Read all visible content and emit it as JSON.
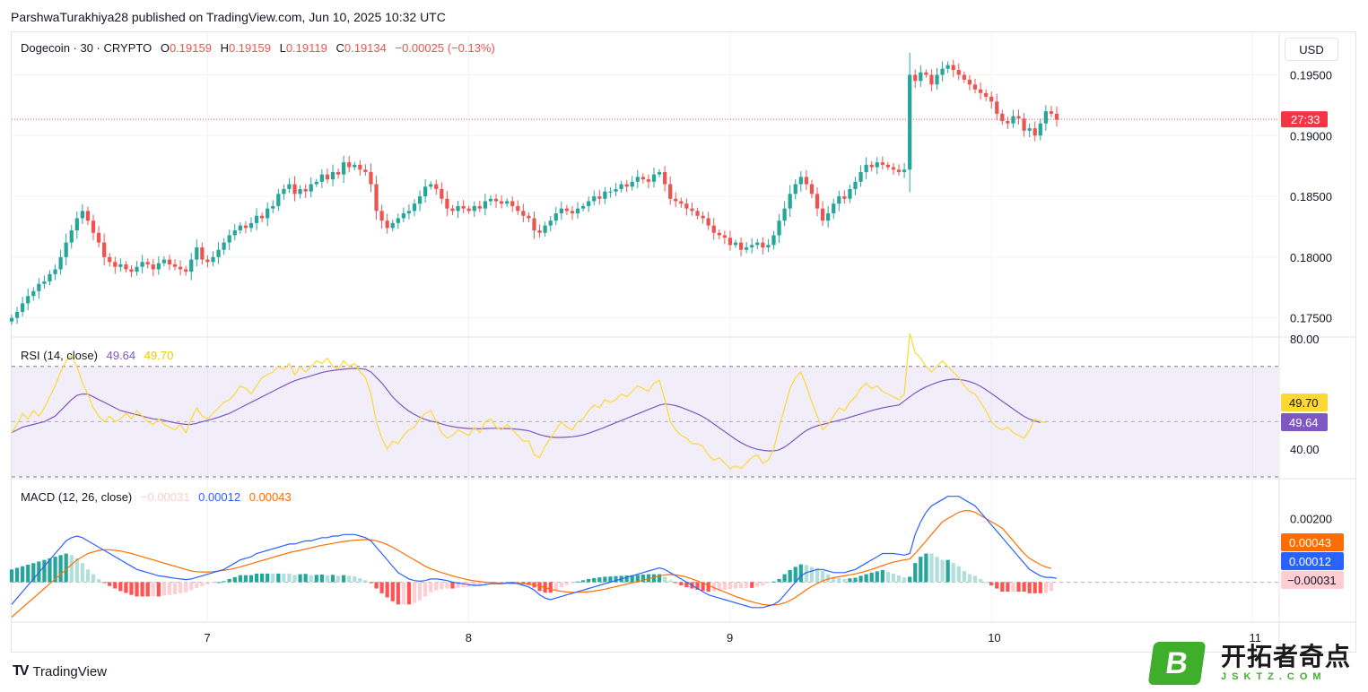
{
  "header": {
    "publisher_line": "ParshwaTurakhiya28 published on TradingView.com, Jun 10, 2025 10:32 UTC"
  },
  "main_legend": {
    "symbol": "Dogecoin · 30 · CRYPTO",
    "o_label": "O",
    "o_value": "0.19159",
    "h_label": "H",
    "h_value": "0.19159",
    "l_label": "L",
    "l_value": "0.19119",
    "c_label": "C",
    "c_value": "0.19134",
    "change": "−0.00025 (−0.13%)"
  },
  "currency": "USD",
  "rsi_legend": {
    "title": "RSI (14, close)",
    "rsi_value": "49.64",
    "ma_value": "49.70"
  },
  "macd_legend": {
    "title": "MACD (12, 26, close)",
    "hist_value": "−0.00031",
    "macd_value": "0.00012",
    "signal_value": "0.00043"
  },
  "footer": {
    "brand": "TradingView"
  },
  "watermark": {
    "letter": "B",
    "cn_text": "开拓者奇点",
    "url_text": "JSKTZ.COM"
  },
  "colors": {
    "up": "#26a69a",
    "down": "#ef5350",
    "rsi_line": "#7e57c2",
    "rsi_ma": "#fdd835",
    "macd_line": "#2962ff",
    "signal_line": "#ff6d00",
    "hist_up_strong": "#26a69a",
    "hist_up_weak": "#b2dfdb",
    "hist_down_strong": "#ff5252",
    "hist_down_weak": "#ffcdd2"
  },
  "chart_data": [
    {
      "type": "candlestick",
      "title": "Dogecoin · 30 · CRYPTO",
      "ylim": [
        0.1735,
        0.1985
      ],
      "y_ticks": [
        "0.19500",
        "0.19000",
        "0.18500",
        "0.18000",
        "0.17500"
      ],
      "x_ticks": [
        "7",
        "8",
        "9",
        "10",
        "11"
      ],
      "last_price": 0.19134,
      "countdown_label": "27:33",
      "closes": [
        0.175,
        0.1755,
        0.1762,
        0.1768,
        0.1772,
        0.1778,
        0.178,
        0.1786,
        0.179,
        0.18,
        0.1812,
        0.1822,
        0.1832,
        0.1838,
        0.183,
        0.182,
        0.1812,
        0.18,
        0.1796,
        0.1792,
        0.1794,
        0.179,
        0.1788,
        0.1792,
        0.1796,
        0.1794,
        0.179,
        0.1795,
        0.1798,
        0.1794,
        0.1792,
        0.179,
        0.1788,
        0.1798,
        0.1808,
        0.1798,
        0.1796,
        0.18,
        0.1806,
        0.1812,
        0.1818,
        0.1822,
        0.1826,
        0.1824,
        0.1828,
        0.1834,
        0.1832,
        0.184,
        0.1842,
        0.1852,
        0.1856,
        0.186,
        0.1852,
        0.1856,
        0.1854,
        0.186,
        0.1862,
        0.1868,
        0.1864,
        0.187,
        0.1868,
        0.1878,
        0.1874,
        0.1876,
        0.1872,
        0.187,
        0.186,
        0.1838,
        0.183,
        0.1824,
        0.1828,
        0.1832,
        0.1836,
        0.1838,
        0.1844,
        0.185,
        0.1858,
        0.186,
        0.1856,
        0.1848,
        0.184,
        0.1838,
        0.1842,
        0.184,
        0.1838,
        0.1842,
        0.184,
        0.1846,
        0.1848,
        0.1846,
        0.1844,
        0.1846,
        0.1842,
        0.1838,
        0.1834,
        0.1832,
        0.1822,
        0.182,
        0.1826,
        0.183,
        0.1836,
        0.184,
        0.1838,
        0.1836,
        0.184,
        0.1842,
        0.1846,
        0.185,
        0.1848,
        0.1854,
        0.1854,
        0.1856,
        0.186,
        0.1858,
        0.1862,
        0.1866,
        0.1864,
        0.1862,
        0.1868,
        0.187,
        0.186,
        0.1848,
        0.1846,
        0.1844,
        0.184,
        0.1838,
        0.1834,
        0.1832,
        0.1826,
        0.182,
        0.1818,
        0.1816,
        0.181,
        0.1812,
        0.1806,
        0.1808,
        0.181,
        0.1812,
        0.1808,
        0.181,
        0.1818,
        0.183,
        0.184,
        0.1852,
        0.186,
        0.1866,
        0.186,
        0.1852,
        0.184,
        0.183,
        0.1836,
        0.1844,
        0.185,
        0.1848,
        0.1856,
        0.1862,
        0.187,
        0.1876,
        0.1874,
        0.1878,
        0.1876,
        0.1874,
        0.1872,
        0.187,
        0.1872,
        0.195,
        0.1945,
        0.1952,
        0.195,
        0.1942,
        0.195,
        0.1955,
        0.1958,
        0.1954,
        0.195,
        0.1946,
        0.1942,
        0.1938,
        0.1935,
        0.1932,
        0.1928,
        0.1918,
        0.1912,
        0.191,
        0.1916,
        0.1914,
        0.1904,
        0.1906,
        0.19,
        0.191,
        0.192,
        0.1918,
        0.1913
      ]
    },
    {
      "type": "line",
      "title": "RSI (14, close)",
      "ylim": [
        30,
        80
      ],
      "y_ticks": [
        "80.00",
        "40.00"
      ],
      "series": [
        {
          "name": "RSI",
          "values": [
            46,
            49,
            53,
            51,
            54,
            52,
            55,
            59,
            63,
            68,
            72,
            74,
            70,
            64,
            60,
            55,
            52,
            50,
            52,
            50,
            51,
            53,
            51,
            54,
            52,
            50,
            49,
            51,
            49,
            48,
            47,
            49,
            46,
            51,
            55,
            52,
            51,
            53,
            55,
            57,
            58,
            60,
            63,
            62,
            60,
            63,
            66,
            67,
            68,
            70,
            69,
            71,
            67,
            70,
            68,
            70,
            72,
            71,
            73,
            70,
            69,
            72,
            70,
            71,
            68,
            66,
            60,
            50,
            44,
            40,
            43,
            42,
            45,
            47,
            48,
            51,
            53,
            54,
            50,
            46,
            44,
            45,
            47,
            46,
            45,
            48,
            46,
            50,
            51,
            48,
            47,
            49,
            47,
            45,
            43,
            43,
            38,
            37,
            41,
            44,
            47,
            50,
            48,
            47,
            50,
            51,
            54,
            56,
            55,
            58,
            57,
            58,
            60,
            59,
            61,
            63,
            62,
            61,
            64,
            65,
            58,
            50,
            47,
            45,
            44,
            42,
            42,
            41,
            38,
            36,
            37,
            35,
            33,
            34,
            33,
            35,
            37,
            38,
            35,
            36,
            40,
            48,
            55,
            62,
            66,
            68,
            63,
            57,
            52,
            47,
            49,
            52,
            55,
            54,
            57,
            59,
            62,
            64,
            62,
            63,
            61,
            60,
            59,
            58,
            60,
            82,
            75,
            73,
            70,
            68,
            70,
            72,
            70,
            68,
            66,
            63,
            61,
            60,
            57,
            54,
            50,
            48,
            47,
            48,
            46,
            45,
            44,
            47,
            51,
            50,
            49.64
          ]
        },
        {
          "name": "MA",
          "values": [
            46,
            47,
            48,
            48.5,
            49,
            49.5,
            50,
            51,
            52,
            54,
            56,
            58,
            59.5,
            60,
            60,
            59,
            58,
            57,
            56,
            55,
            54,
            53.5,
            53,
            52.5,
            52,
            51.5,
            51,
            50.8,
            50.5,
            50,
            49.6,
            49.3,
            49,
            49,
            49.4,
            50,
            50.5,
            51,
            51.6,
            52.3,
            53,
            54,
            55,
            56,
            57,
            58,
            59,
            60,
            61,
            62,
            63,
            64,
            64.8,
            65.5,
            66,
            66.6,
            67.2,
            67.8,
            68.2,
            68.5,
            68.8,
            69,
            69.2,
            69.3,
            69.2,
            69,
            68,
            66,
            64,
            61.5,
            59,
            57,
            55.3,
            53.8,
            52.6,
            51.6,
            50.8,
            50.2,
            49.8,
            49.2,
            48.6,
            48.2,
            47.9,
            47.7,
            47.5,
            47.5,
            47.4,
            47.5,
            47.6,
            47.6,
            47.5,
            47.5,
            47.4,
            47.2,
            47,
            46.7,
            46,
            45.3,
            44.8,
            44.4,
            44.3,
            44.3,
            44.4,
            44.5,
            44.8,
            45.2,
            45.8,
            46.5,
            47.2,
            48,
            48.8,
            49.6,
            50.4,
            51.2,
            52,
            52.8,
            53.6,
            54.4,
            55.2,
            56,
            56.4,
            56.2,
            55.8,
            55.2,
            54.4,
            53.6,
            52.8,
            51.8,
            50.6,
            49.2,
            47.8,
            46.4,
            45,
            43.6,
            42.4,
            41.4,
            40.6,
            40,
            39.6,
            39.4,
            39.4,
            39.8,
            40.8,
            42.2,
            43.8,
            45.4,
            46.8,
            47.8,
            48.5,
            49,
            49.5,
            50,
            50.5,
            51,
            51.6,
            52.2,
            52.8,
            53.4,
            54,
            54.5,
            55,
            55.4,
            55.7,
            56,
            57.5,
            59,
            60.4,
            61.6,
            62.6,
            63.4,
            64.2,
            64.8,
            65.2,
            65.4,
            65.3,
            65,
            64.5,
            63.8,
            62.8,
            61.6,
            60.2,
            58.8,
            57.4,
            56,
            54.6,
            53.2,
            51.9,
            50.9,
            50.2,
            49.7
          ]
        }
      ]
    },
    {
      "type": "line",
      "title": "MACD (12, 26, close)",
      "ylim": [
        -0.0012,
        0.0032
      ],
      "y_ticks": [
        "0.00200"
      ],
      "series": [
        {
          "name": "MACD",
          "values": [
            -0.0007,
            -0.0005,
            -0.0003,
            -0.0001,
            0.0001,
            0.0003,
            0.0005,
            0.0007,
            0.0009,
            0.0011,
            0.0013,
            0.0014,
            0.00145,
            0.0014,
            0.0013,
            0.0012,
            0.0011,
            0.001,
            0.0009,
            0.0008,
            0.0007,
            0.0006,
            0.0005,
            0.0004,
            0.00035,
            0.0003,
            0.00025,
            0.0002,
            0.00018,
            0.00015,
            0.00012,
            0.0001,
            8e-05,
            0.0001,
            0.00015,
            0.0002,
            0.00025,
            0.0003,
            0.00035,
            0.0004,
            0.0005,
            0.0006,
            0.0007,
            0.00075,
            0.0008,
            0.0009,
            0.00095,
            0.001,
            0.00105,
            0.0011,
            0.00115,
            0.0012,
            0.0012,
            0.00125,
            0.0013,
            0.0013,
            0.00135,
            0.0014,
            0.0014,
            0.00145,
            0.00145,
            0.0015,
            0.0015,
            0.0015,
            0.00145,
            0.0014,
            0.0013,
            0.0011,
            0.0009,
            0.0007,
            0.0005,
            0.0003,
            0.0002,
            0.0001,
            5e-05,
            3e-05,
            5e-05,
            0.0001,
            0.0001,
            8e-05,
            5e-05,
            0,
            -3e-05,
            -5e-05,
            -8e-05,
            -0.0001,
            -0.0001,
            -8e-05,
            -5e-05,
            -5e-05,
            -5e-05,
            -3e-05,
            -3e-05,
            -5e-05,
            -0.0001,
            -0.00015,
            -0.00025,
            -0.0004,
            -0.0005,
            -0.00055,
            -0.0005,
            -0.00045,
            -0.0004,
            -0.00035,
            -0.0003,
            -0.00025,
            -0.0002,
            -0.00015,
            -0.0001,
            -5e-05,
            0,
            5e-05,
            0.0001,
            0.00015,
            0.0002,
            0.00025,
            0.0003,
            0.00035,
            0.0004,
            0.00045,
            0.0004,
            0.0003,
            0.0002,
            0.0001,
            0,
            -0.0001,
            -0.0002,
            -0.0003,
            -0.0004,
            -0.00045,
            -0.0005,
            -0.00055,
            -0.0006,
            -0.00065,
            -0.0007,
            -0.00075,
            -0.0008,
            -0.0008,
            -0.0008,
            -0.00075,
            -0.0007,
            -0.0006,
            -0.0004,
            -0.0002,
            0,
            0.0002,
            0.0003,
            0.00035,
            0.0004,
            0.0004,
            0.00035,
            0.0003,
            0.0003,
            0.0003,
            0.00035,
            0.0004,
            0.0005,
            0.0006,
            0.0007,
            0.0008,
            0.0009,
            0.0009,
            0.0009,
            0.00088,
            0.00085,
            0.0009,
            0.0015,
            0.0019,
            0.0022,
            0.0024,
            0.0025,
            0.0026,
            0.0027,
            0.0027,
            0.0027,
            0.0026,
            0.0025,
            0.0024,
            0.0022,
            0.002,
            0.0018,
            0.0016,
            0.0014,
            0.0012,
            0.001,
            0.0008,
            0.0006,
            0.0004,
            0.0003,
            0.0002,
            0.00015,
            0.00015,
            0.00012
          ]
        },
        {
          "name": "Signal",
          "values": [
            -0.0011,
            -0.00095,
            -0.0008,
            -0.00065,
            -0.0005,
            -0.00035,
            -0.0002,
            -5e-05,
            0.0001,
            0.00025,
            0.0004,
            0.00055,
            0.0007,
            0.0008,
            0.0009,
            0.00095,
            0.001,
            0.00102,
            0.00102,
            0.001,
            0.00098,
            0.00094,
            0.0009,
            0.00085,
            0.0008,
            0.00075,
            0.0007,
            0.00065,
            0.0006,
            0.00055,
            0.0005,
            0.00045,
            0.0004,
            0.00035,
            0.00033,
            0.00032,
            0.00032,
            0.00033,
            0.00035,
            0.00037,
            0.0004,
            0.00044,
            0.00048,
            0.00053,
            0.00058,
            0.00063,
            0.00068,
            0.00073,
            0.00078,
            0.00083,
            0.00088,
            0.00093,
            0.00097,
            0.001,
            0.00104,
            0.00108,
            0.00112,
            0.00116,
            0.00119,
            0.00122,
            0.00125,
            0.00128,
            0.0013,
            0.00132,
            0.00133,
            0.00134,
            0.00133,
            0.0013,
            0.00125,
            0.00118,
            0.0011,
            0.001,
            0.0009,
            0.0008,
            0.0007,
            0.0006,
            0.0005,
            0.00042,
            0.00036,
            0.0003,
            0.00025,
            0.0002,
            0.00015,
            0.00011,
            7e-05,
            4e-05,
            2e-05,
            0,
            -1e-05,
            -2e-05,
            -3e-05,
            -3e-05,
            -4e-05,
            -4e-05,
            -5e-05,
            -6e-05,
            -8e-05,
            -0.00012,
            -0.00017,
            -0.00022,
            -0.00026,
            -0.00029,
            -0.00031,
            -0.00032,
            -0.00032,
            -0.00031,
            -0.0003,
            -0.00028,
            -0.00025,
            -0.00022,
            -0.00018,
            -0.00014,
            -0.0001,
            -6e-05,
            -2e-05,
            2e-05,
            6e-05,
            0.0001,
            0.00015,
            0.0002,
            0.00023,
            0.00024,
            0.00023,
            0.0002,
            0.00016,
            0.0001,
            4e-05,
            -3e-05,
            -0.0001,
            -0.00017,
            -0.00024,
            -0.00031,
            -0.00038,
            -0.00045,
            -0.00051,
            -0.00057,
            -0.00062,
            -0.00066,
            -0.0007,
            -0.00072,
            -0.00072,
            -0.0007,
            -0.00065,
            -0.00058,
            -0.00048,
            -0.00036,
            -0.00024,
            -0.00013,
            -4e-05,
            4e-05,
            0.0001,
            0.00014,
            0.00017,
            0.0002,
            0.00023,
            0.00026,
            0.0003,
            0.00035,
            0.0004,
            0.00046,
            0.00052,
            0.00058,
            0.00063,
            0.00067,
            0.0007,
            0.00073,
            0.0009,
            0.0011,
            0.0013,
            0.0015,
            0.0017,
            0.0019,
            0.002,
            0.0021,
            0.0022,
            0.00225,
            0.00225,
            0.0022,
            0.0021,
            0.002,
            0.0019,
            0.0018,
            0.0017,
            0.0015,
            0.0013,
            0.0011,
            0.0009,
            0.00075,
            0.00065,
            0.00055,
            0.00048,
            0.00043
          ]
        }
      ]
    }
  ]
}
